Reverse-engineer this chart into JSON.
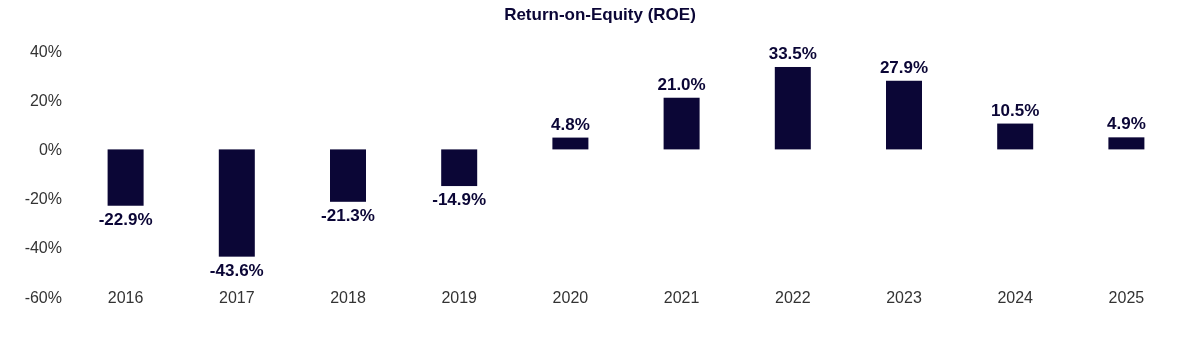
{
  "chart_data": {
    "type": "bar",
    "title": "Return-on-Equity (ROE)",
    "categories": [
      "2016",
      "2017",
      "2018",
      "2019",
      "2020",
      "2021",
      "2022",
      "2023",
      "2024",
      "2025"
    ],
    "values": [
      -22.9,
      -43.6,
      -21.3,
      -14.9,
      4.8,
      21.0,
      33.5,
      27.9,
      10.5,
      4.9
    ],
    "value_labels": [
      "-22.9%",
      "-43.6%",
      "-21.3%",
      "-14.9%",
      "4.8%",
      "21.0%",
      "33.5%",
      "27.9%",
      "10.5%",
      "4.9%"
    ],
    "color": "#0b0636",
    "ylim": [
      -60,
      40
    ],
    "yticks": [
      {
        "value": -60,
        "label": "-60%"
      },
      {
        "value": -40,
        "label": "-40%"
      },
      {
        "value": -20,
        "label": "-20%"
      },
      {
        "value": 0,
        "label": "0%"
      },
      {
        "value": 20,
        "label": "20%"
      },
      {
        "value": 40,
        "label": "40%"
      }
    ],
    "grid": false
  }
}
